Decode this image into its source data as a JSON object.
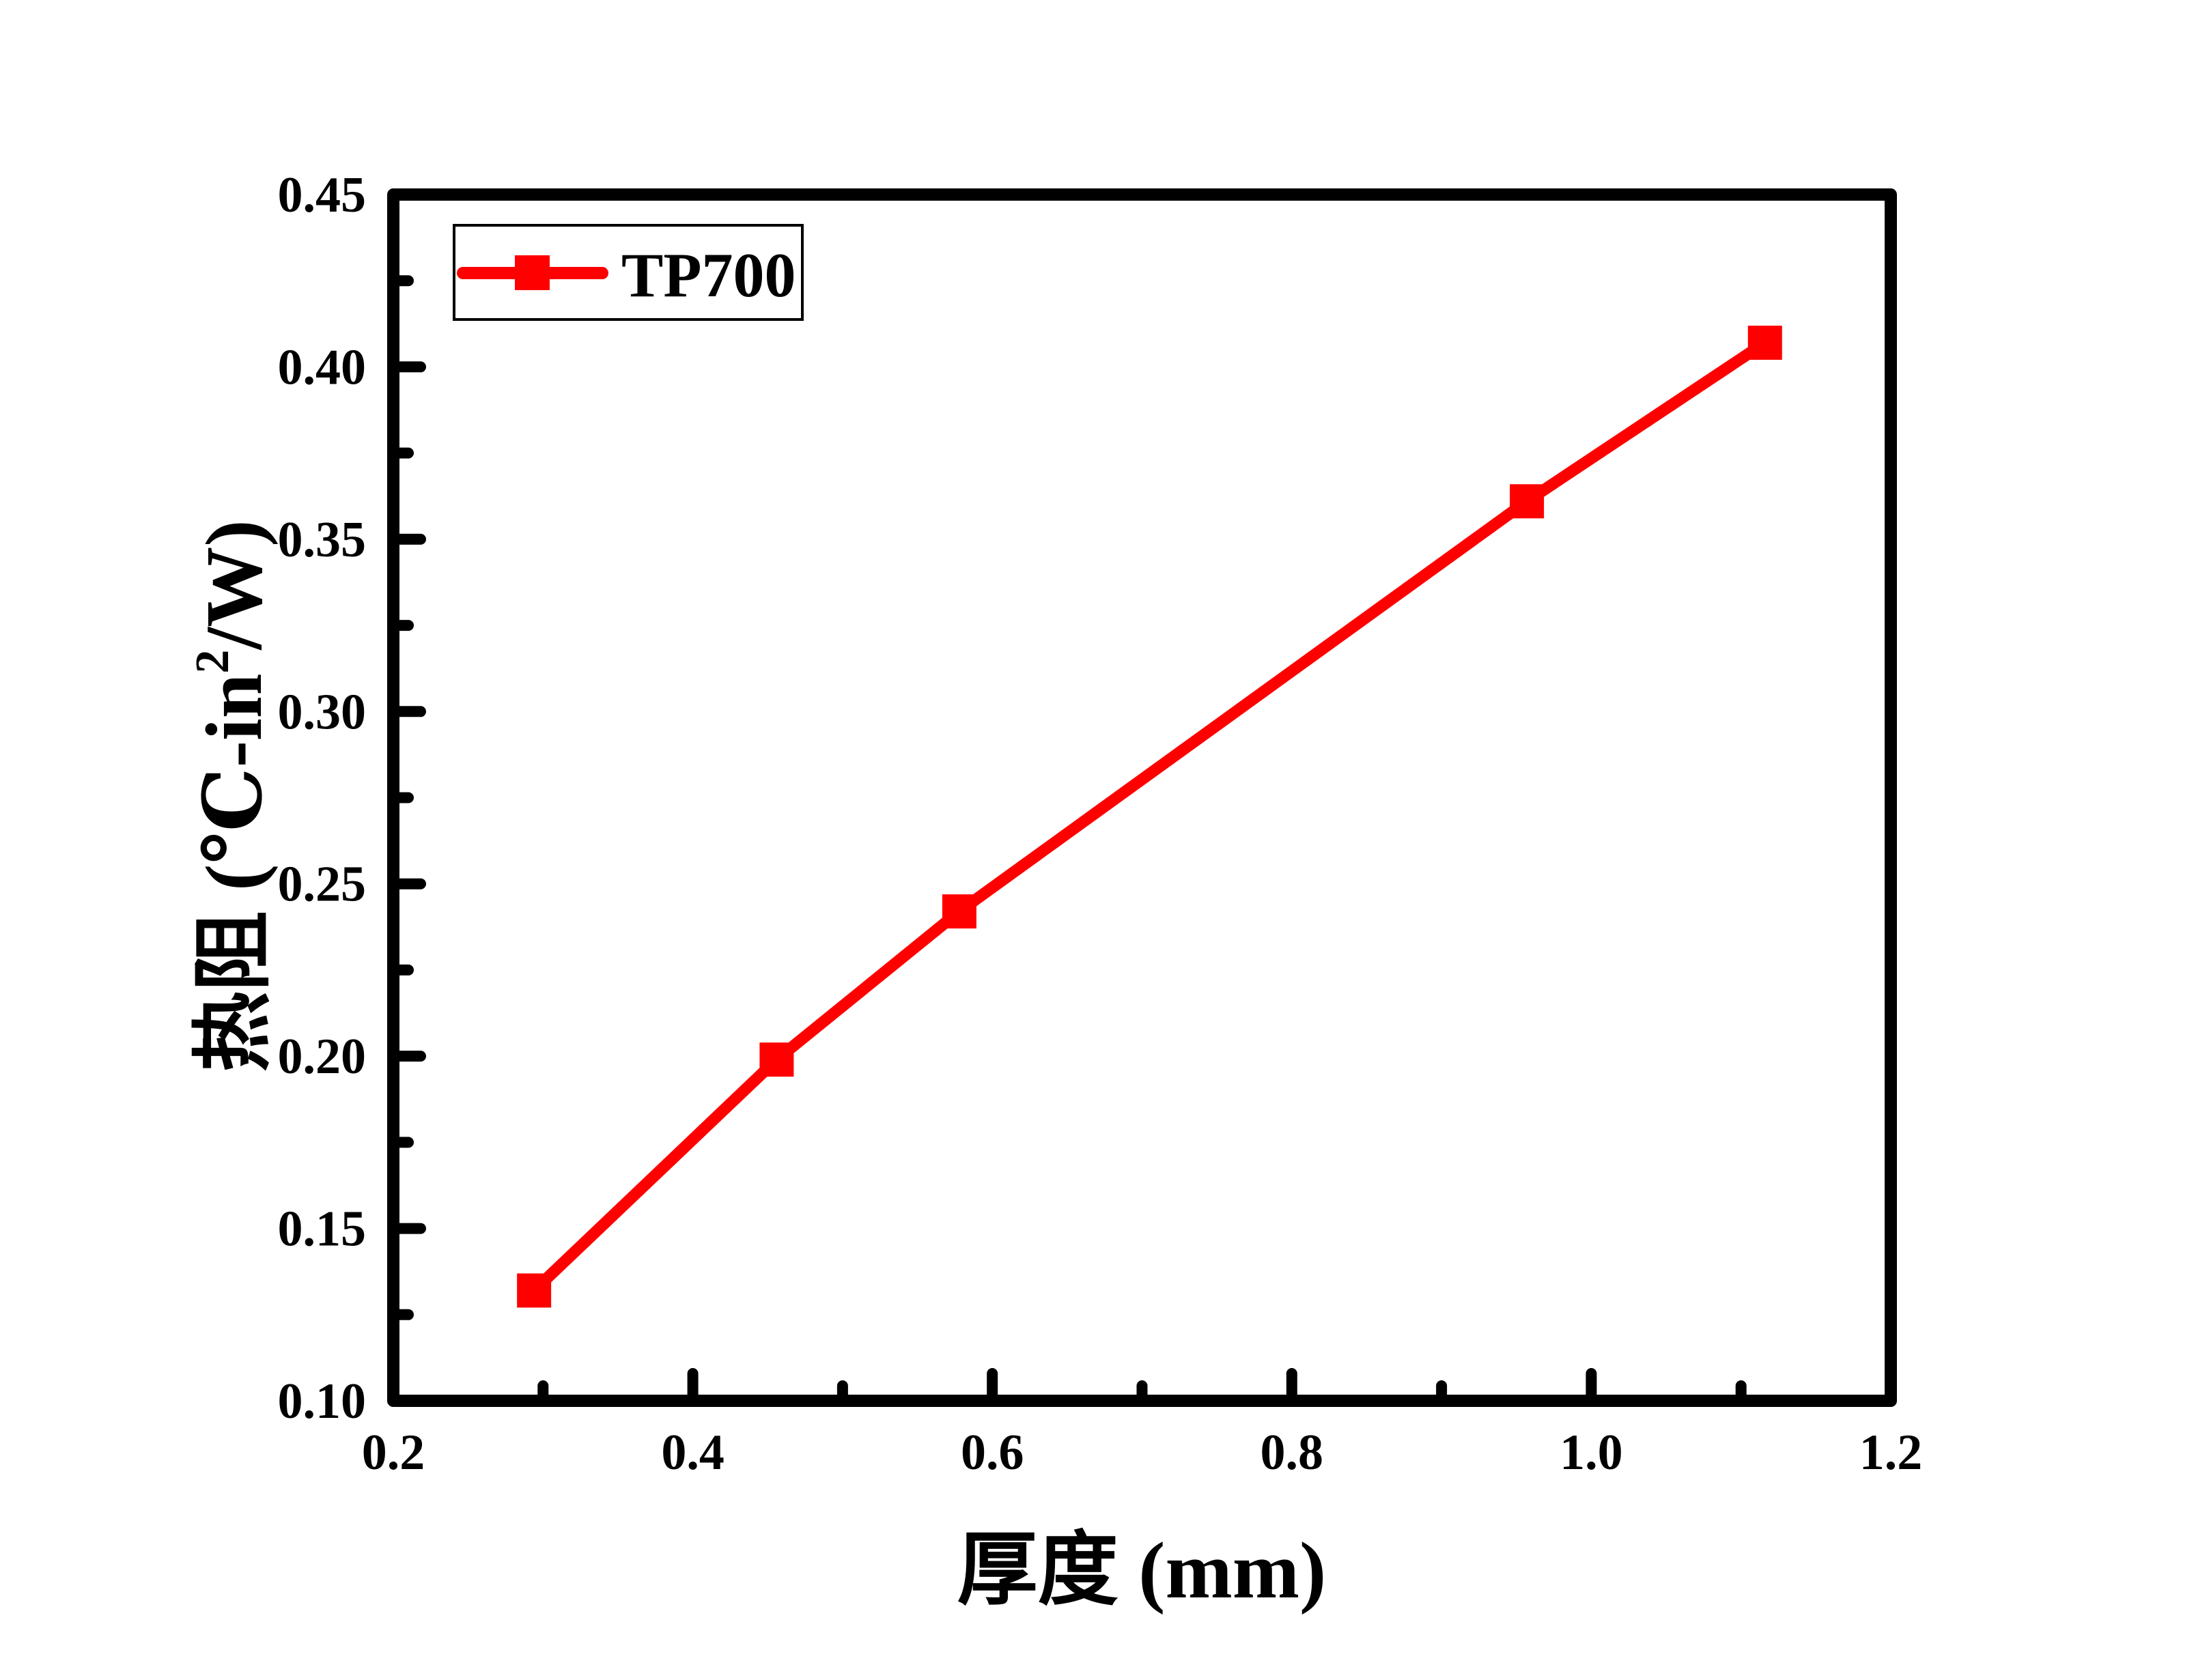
{
  "chart_data": {
    "type": "line",
    "title": "",
    "xlabel": "厚度 (mm)",
    "ylabel": "热阻 (℃-in²/W)",
    "ylabel_parts": {
      "prefix": "热阻 (℃-in",
      "superscript": "2",
      "suffix": "/W)"
    },
    "xlim": [
      0.2,
      1.2
    ],
    "ylim": [
      0.1,
      0.45
    ],
    "x_ticks": [
      0.2,
      0.4,
      0.6,
      0.8,
      1.0,
      1.2
    ],
    "x_tick_labels": [
      "0.2",
      "0.4",
      "0.6",
      "0.8",
      "1.0",
      "1.2"
    ],
    "x_minor_ticks": [
      0.3,
      0.5,
      0.7,
      0.9,
      1.1
    ],
    "y_ticks": [
      0.1,
      0.15,
      0.2,
      0.25,
      0.3,
      0.35,
      0.4,
      0.45
    ],
    "y_tick_labels": [
      "0.10",
      "0.15",
      "0.20",
      "0.25",
      "0.30",
      "0.35",
      "0.40",
      "0.45"
    ],
    "y_minor_ticks": [
      0.125,
      0.175,
      0.225,
      0.275,
      0.325,
      0.375,
      0.425
    ],
    "grid": false,
    "legend_position": "upper left",
    "series": [
      {
        "name": "TP700",
        "color": "#ff0000",
        "marker": "square",
        "x": [
          0.294,
          0.456,
          0.578,
          0.957,
          1.116
        ],
        "y": [
          0.132,
          0.199,
          0.242,
          0.361,
          0.407
        ]
      }
    ]
  },
  "colors": {
    "background": "#ffffff",
    "axis": "#000000",
    "series": "#ff0000"
  }
}
